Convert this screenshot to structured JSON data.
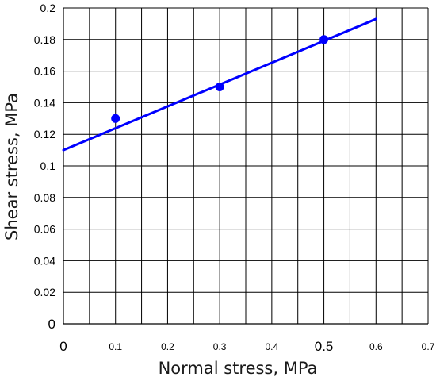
{
  "chart_data": {
    "type": "scatter",
    "xlabel": "Normal stress, MPa",
    "ylabel": "Shear stress, MPa",
    "xlim": [
      0,
      0.7
    ],
    "ylim": [
      0,
      0.2
    ],
    "x_ticks": [
      {
        "value": 0,
        "label": "0"
      },
      {
        "value": 0.1,
        "label": "0.1"
      },
      {
        "value": 0.2,
        "label": "0.2"
      },
      {
        "value": 0.3,
        "label": "0.3"
      },
      {
        "value": 0.4,
        "label": "0.4"
      },
      {
        "value": 0.5,
        "label": "0.5"
      },
      {
        "value": 0.6,
        "label": "0.6"
      },
      {
        "value": 0.7,
        "label": "0.7"
      }
    ],
    "y_ticks": [
      {
        "value": 0,
        "label": "0"
      },
      {
        "value": 0.02,
        "label": "0.02"
      },
      {
        "value": 0.04,
        "label": "0.04"
      },
      {
        "value": 0.06,
        "label": "0.06"
      },
      {
        "value": 0.08,
        "label": "0.08"
      },
      {
        "value": 0.1,
        "label": "0.1"
      },
      {
        "value": 0.12,
        "label": "0.12"
      },
      {
        "value": 0.14,
        "label": "0.14"
      },
      {
        "value": 0.16,
        "label": "0.16"
      },
      {
        "value": 0.18,
        "label": "0.18"
      },
      {
        "value": 0.2,
        "label": "0.2"
      }
    ],
    "vertical_grid": [
      0.05,
      0.1,
      0.15,
      0.2,
      0.25,
      0.3,
      0.35,
      0.4,
      0.45,
      0.5,
      0.55,
      0.6,
      0.65,
      0.7
    ],
    "horizontal_grid": [
      0.02,
      0.04,
      0.06,
      0.08,
      0.1,
      0.12,
      0.14,
      0.16,
      0.18,
      0.2
    ],
    "grid": true,
    "points": [
      {
        "x": 0.1,
        "y": 0.13
      },
      {
        "x": 0.3,
        "y": 0.15
      },
      {
        "x": 0.5,
        "y": 0.18
      }
    ],
    "trendline": {
      "x": [
        0,
        0.6
      ],
      "y": [
        0.11,
        0.193
      ]
    },
    "colors": {
      "series": "#0000ff",
      "grid": "#000000"
    }
  }
}
